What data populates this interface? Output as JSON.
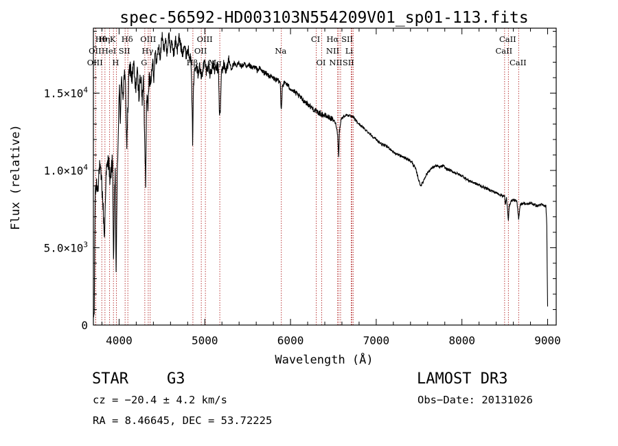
{
  "chart_data": {
    "type": "line",
    "title": "spec-56592-HD003103N554209V01_sp01-113.fits",
    "xlabel": "Wavelength (Å)",
    "ylabel": "Flux (relative)",
    "xlim": [
      3700,
      9100
    ],
    "ylim": [
      0,
      19200
    ],
    "xticks": [
      {
        "value": 4000,
        "label": "4000"
      },
      {
        "value": 5000,
        "label": "5000"
      },
      {
        "value": 6000,
        "label": "6000"
      },
      {
        "value": 7000,
        "label": "7000"
      },
      {
        "value": 8000,
        "label": "8000"
      },
      {
        "value": 9000,
        "label": "9000"
      }
    ],
    "yticks": [
      {
        "value": 0,
        "label": "0",
        "exp": ""
      },
      {
        "value": 5000,
        "label": "5.0×10",
        "exp": "3"
      },
      {
        "value": 10000,
        "label": "1.0×10",
        "exp": "4"
      },
      {
        "value": 15000,
        "label": "1.5×10",
        "exp": "4"
      }
    ],
    "anchors": [
      [
        3700,
        300
      ],
      [
        3710,
        900
      ],
      [
        3720,
        8200
      ],
      [
        3735,
        9200
      ],
      [
        3750,
        8800
      ],
      [
        3770,
        10200
      ],
      [
        3790,
        9600
      ],
      [
        3800,
        9000
      ],
      [
        3815,
        7400
      ],
      [
        3830,
        5600
      ],
      [
        3845,
        9500
      ],
      [
        3860,
        10200
      ],
      [
        3880,
        10800
      ],
      [
        3895,
        9000
      ],
      [
        3910,
        10200
      ],
      [
        3925,
        10600
      ],
      [
        3935,
        4000
      ],
      [
        3945,
        7800
      ],
      [
        3955,
        9800
      ],
      [
        3965,
        3300
      ],
      [
        3975,
        8200
      ],
      [
        3990,
        12500
      ],
      [
        4005,
        15400
      ],
      [
        4015,
        13200
      ],
      [
        4030,
        16100
      ],
      [
        4045,
        14800
      ],
      [
        4060,
        16200
      ],
      [
        4075,
        15400
      ],
      [
        4090,
        11500
      ],
      [
        4100,
        13500
      ],
      [
        4115,
        16100
      ],
      [
        4130,
        16800
      ],
      [
        4150,
        15800
      ],
      [
        4170,
        16900
      ],
      [
        4190,
        15200
      ],
      [
        4210,
        16400
      ],
      [
        4230,
        14900
      ],
      [
        4250,
        16200
      ],
      [
        4270,
        14500
      ],
      [
        4285,
        15800
      ],
      [
        4300,
        11800
      ],
      [
        4310,
        9200
      ],
      [
        4320,
        15100
      ],
      [
        4335,
        13700
      ],
      [
        4350,
        16300
      ],
      [
        4370,
        15600
      ],
      [
        4390,
        17300
      ],
      [
        4405,
        16000
      ],
      [
        4420,
        17600
      ],
      [
        4440,
        17000
      ],
      [
        4460,
        18100
      ],
      [
        4480,
        17200
      ],
      [
        4500,
        18700
      ],
      [
        4520,
        17900
      ],
      [
        4540,
        18400
      ],
      [
        4560,
        17600
      ],
      [
        4580,
        18800
      ],
      [
        4600,
        17900
      ],
      [
        4620,
        18200
      ],
      [
        4640,
        17500
      ],
      [
        4660,
        18500
      ],
      [
        4680,
        17800
      ],
      [
        4700,
        18600
      ],
      [
        4720,
        18000
      ],
      [
        4740,
        17600
      ],
      [
        4760,
        18200
      ],
      [
        4780,
        17500
      ],
      [
        4800,
        17800
      ],
      [
        4820,
        17600
      ],
      [
        4840,
        17000
      ],
      [
        4850,
        14500
      ],
      [
        4858,
        11900
      ],
      [
        4866,
        15000
      ],
      [
        4880,
        16600
      ],
      [
        4900,
        17000
      ],
      [
        4920,
        16300
      ],
      [
        4940,
        16800
      ],
      [
        4960,
        15900
      ],
      [
        4980,
        16700
      ],
      [
        5000,
        17000
      ],
      [
        5020,
        16400
      ],
      [
        5040,
        16900
      ],
      [
        5060,
        16200
      ],
      [
        5080,
        16600
      ],
      [
        5100,
        16800
      ],
      [
        5120,
        16400
      ],
      [
        5140,
        16700
      ],
      [
        5160,
        16500
      ],
      [
        5172,
        13400
      ],
      [
        5183,
        14100
      ],
      [
        5195,
        16400
      ],
      [
        5220,
        16800
      ],
      [
        5250,
        16500
      ],
      [
        5280,
        17100
      ],
      [
        5310,
        16600
      ],
      [
        5340,
        16900
      ],
      [
        5370,
        16700
      ],
      [
        5400,
        17000
      ],
      [
        5430,
        16700
      ],
      [
        5460,
        16900
      ],
      [
        5490,
        16600
      ],
      [
        5520,
        16800
      ],
      [
        5550,
        16600
      ],
      [
        5580,
        16700
      ],
      [
        5610,
        16500
      ],
      [
        5640,
        16600
      ],
      [
        5670,
        16400
      ],
      [
        5700,
        16300
      ],
      [
        5730,
        16200
      ],
      [
        5760,
        16100
      ],
      [
        5790,
        16000
      ],
      [
        5820,
        15900
      ],
      [
        5850,
        15800
      ],
      [
        5880,
        15700
      ],
      [
        5890,
        14000
      ],
      [
        5896,
        14300
      ],
      [
        5905,
        15500
      ],
      [
        5940,
        15700
      ],
      [
        5980,
        15400
      ],
      [
        6020,
        15200
      ],
      [
        6060,
        15000
      ],
      [
        6100,
        14800
      ],
      [
        6140,
        14600
      ],
      [
        6180,
        14400
      ],
      [
        6220,
        14200
      ],
      [
        6260,
        14000
      ],
      [
        6300,
        13800
      ],
      [
        6340,
        13700
      ],
      [
        6380,
        13600
      ],
      [
        6420,
        13500
      ],
      [
        6460,
        13400
      ],
      [
        6490,
        13300
      ],
      [
        6510,
        13200
      ],
      [
        6530,
        13000
      ],
      [
        6550,
        12300
      ],
      [
        6562,
        10900
      ],
      [
        6570,
        12500
      ],
      [
        6590,
        13300
      ],
      [
        6620,
        13500
      ],
      [
        6660,
        13600
      ],
      [
        6700,
        13500
      ],
      [
        6740,
        13400
      ],
      [
        6780,
        13100
      ],
      [
        6820,
        12900
      ],
      [
        6860,
        12700
      ],
      [
        6900,
        12500
      ],
      [
        6940,
        12300
      ],
      [
        6980,
        12100
      ],
      [
        7020,
        11900
      ],
      [
        7060,
        11700
      ],
      [
        7100,
        11600
      ],
      [
        7140,
        11500
      ],
      [
        7180,
        11300
      ],
      [
        7220,
        11100
      ],
      [
        7260,
        11000
      ],
      [
        7300,
        10900
      ],
      [
        7340,
        10800
      ],
      [
        7380,
        10700
      ],
      [
        7420,
        10500
      ],
      [
        7460,
        10100
      ],
      [
        7500,
        9300
      ],
      [
        7520,
        9000
      ],
      [
        7550,
        9300
      ],
      [
        7580,
        9700
      ],
      [
        7620,
        10000
      ],
      [
        7660,
        10200
      ],
      [
        7700,
        10300
      ],
      [
        7740,
        10200
      ],
      [
        7780,
        10300
      ],
      [
        7820,
        10100
      ],
      [
        7860,
        10000
      ],
      [
        7900,
        9900
      ],
      [
        7940,
        9800
      ],
      [
        7980,
        9700
      ],
      [
        8020,
        9600
      ],
      [
        8060,
        9400
      ],
      [
        8100,
        9300
      ],
      [
        8140,
        9200
      ],
      [
        8180,
        9100
      ],
      [
        8220,
        9000
      ],
      [
        8260,
        8900
      ],
      [
        8300,
        8800
      ],
      [
        8340,
        8700
      ],
      [
        8380,
        8600
      ],
      [
        8420,
        8500
      ],
      [
        8460,
        8400
      ],
      [
        8498,
        8300
      ],
      [
        8505,
        7800
      ],
      [
        8520,
        8200
      ],
      [
        8542,
        6800
      ],
      [
        8550,
        7600
      ],
      [
        8570,
        8000
      ],
      [
        8600,
        8100
      ],
      [
        8640,
        8000
      ],
      [
        8662,
        6900
      ],
      [
        8680,
        7800
      ],
      [
        8720,
        7900
      ],
      [
        8760,
        7800
      ],
      [
        8800,
        7900
      ],
      [
        8840,
        7800
      ],
      [
        8880,
        7700
      ],
      [
        8920,
        7800
      ],
      [
        8960,
        7700
      ],
      [
        8980,
        7700
      ],
      [
        8990,
        6500
      ],
      [
        8995,
        3500
      ],
      [
        9000,
        1200
      ]
    ],
    "lines": [
      {
        "label": "Hθ",
        "x": 3798,
        "row": 0,
        "dx": 0
      },
      {
        "label": "Hη",
        "x": 3835,
        "row": 0,
        "dx": 0
      },
      {
        "label": "K",
        "x": 3934,
        "row": 0,
        "dx": 0
      },
      {
        "label": "Hδ",
        "x": 4102,
        "row": 0,
        "dx": 0
      },
      {
        "label": "OIII",
        "x": 4363,
        "row": 0,
        "dx": -2
      },
      {
        "label": "OIII",
        "x": 5007,
        "row": 0,
        "dx": 0
      },
      {
        "label": "CI",
        "x": 6300,
        "row": 0,
        "dx": 0
      },
      {
        "label": "Hα",
        "x": 6563,
        "row": 0,
        "dx": -8
      },
      {
        "label": "SII",
        "x": 6717,
        "row": 0,
        "dx": -6
      },
      {
        "label": "CaII",
        "x": 8542,
        "row": 0,
        "dx": 0
      },
      {
        "label": "OII",
        "x": 3727,
        "row": 1,
        "dx": 0
      },
      {
        "label": "HeI",
        "x": 3889,
        "row": 1,
        "dx": 0
      },
      {
        "label": "SII",
        "x": 4070,
        "row": 1,
        "dx": 0
      },
      {
        "label": "Hγ",
        "x": 4340,
        "row": 1,
        "dx": 0
      },
      {
        "label": "OII",
        "x": 4959,
        "row": 1,
        "dx": 0
      },
      {
        "label": "Na",
        "x": 5893,
        "row": 1,
        "dx": 0
      },
      {
        "label": "NII",
        "x": 6548,
        "row": 1,
        "dx": -6
      },
      {
        "label": "Li",
        "x": 6708,
        "row": 1,
        "dx": -2
      },
      {
        "label": "CaII",
        "x": 8498,
        "row": 1,
        "dx": 0
      },
      {
        "label": "OIII",
        "x": 3726,
        "row": 2,
        "dx": 0
      },
      {
        "label": "H",
        "x": 3968,
        "row": 2,
        "dx": 0
      },
      {
        "label": "G",
        "x": 4300,
        "row": 2,
        "dx": 0
      },
      {
        "label": "Hβ",
        "x": 4861,
        "row": 2,
        "dx": 0
      },
      {
        "label": "Mg",
        "x": 5175,
        "row": 2,
        "dx": -6
      },
      {
        "label": "OI",
        "x": 6364,
        "row": 2,
        "dx": 0
      },
      {
        "label": "NII",
        "x": 6584,
        "row": 2,
        "dx": -6
      },
      {
        "label": "SII",
        "x": 6731,
        "row": 2,
        "dx": -6
      },
      {
        "label": "CaII",
        "x": 8662,
        "row": 2,
        "dx": 0
      }
    ]
  },
  "info": {
    "object_class": "STAR",
    "subclass": "G3",
    "survey": "LAMOST DR3",
    "redshift": "cz = −20.4 ± 4.2 km/s",
    "obs_date": "Obs−Date: 20131026",
    "coords": "RA =   8.46645, DEC =  53.72225"
  }
}
